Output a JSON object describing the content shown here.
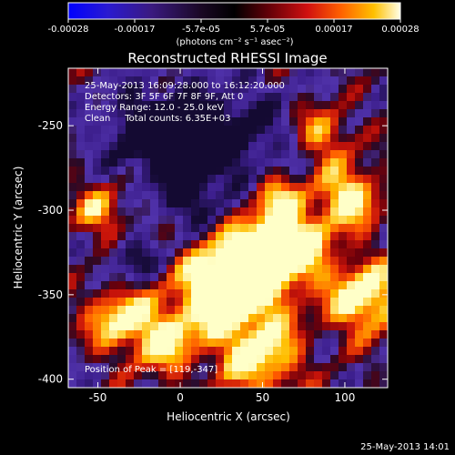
{
  "colorbar": {
    "ticks": [
      "-0.00028",
      "-0.00017",
      "-5.7e-05",
      "5.7e-05",
      "0.00017",
      "0.00028"
    ],
    "units": "(photons cm⁻² s⁻¹ asec⁻²)",
    "colors": [
      "#0000ff",
      "#3020b0",
      "#3a1a70",
      "#200a30",
      "#000000",
      "#5a0008",
      "#b00010",
      "#ff2000",
      "#ff8a00",
      "#ffd000",
      "#ffffd0"
    ]
  },
  "image": {
    "title": "Reconstructed RHESSI Image",
    "info_lines": [
      "25-May-2013 16:09:28.000 to 16:12:20.000",
      "Detectors: 3F 5F 6F 7F 8F 9F, Att 0",
      "Energy Range: 12.0 - 25.0 keV",
      "Clean     Total counts: 6.35E+03"
    ],
    "peak_label": "Position of Peak = [119,-347]",
    "xlabel": "Heliocentric X (arcsec)",
    "ylabel": "Heliocentric Y (arcsec)",
    "x_ticks": [
      "-50",
      "0",
      "50",
      "100"
    ],
    "y_ticks": [
      "-250",
      "-300",
      "-350",
      "-400"
    ],
    "x_range": [
      -68,
      126
    ],
    "y_range": [
      -405,
      -216
    ],
    "x_tick_values": [
      -50,
      0,
      50,
      100
    ],
    "y_tick_values": [
      -250,
      -300,
      -350,
      -400
    ]
  },
  "footer": {
    "timestamp": "25-May-2013 14:01"
  }
}
